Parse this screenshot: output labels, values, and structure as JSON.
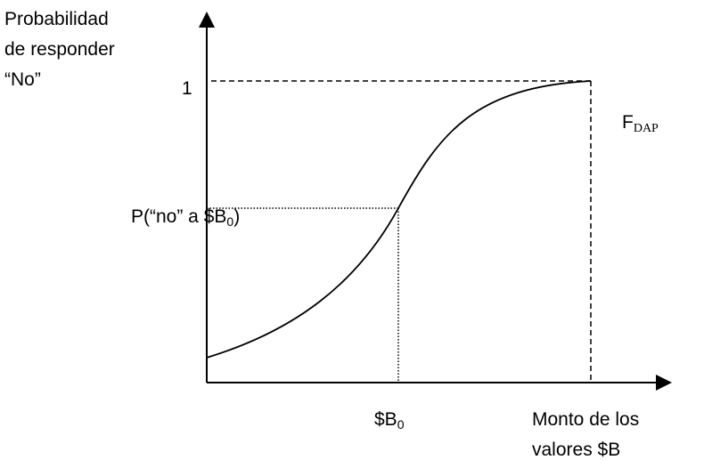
{
  "y_axis_label": [
    "Probabilidad",
    "de responder",
    "“No”"
  ],
  "tick_one": "1",
  "curve_label": {
    "main": "F",
    "sub": "DAP"
  },
  "marker_label": {
    "prefix": "P(“no” a $B",
    "sub": "0",
    "suffix": ")"
  },
  "x_marker": {
    "main": "$B",
    "sub": "0"
  },
  "x_axis_label": [
    "Monto de los",
    "valores $B"
  ]
}
